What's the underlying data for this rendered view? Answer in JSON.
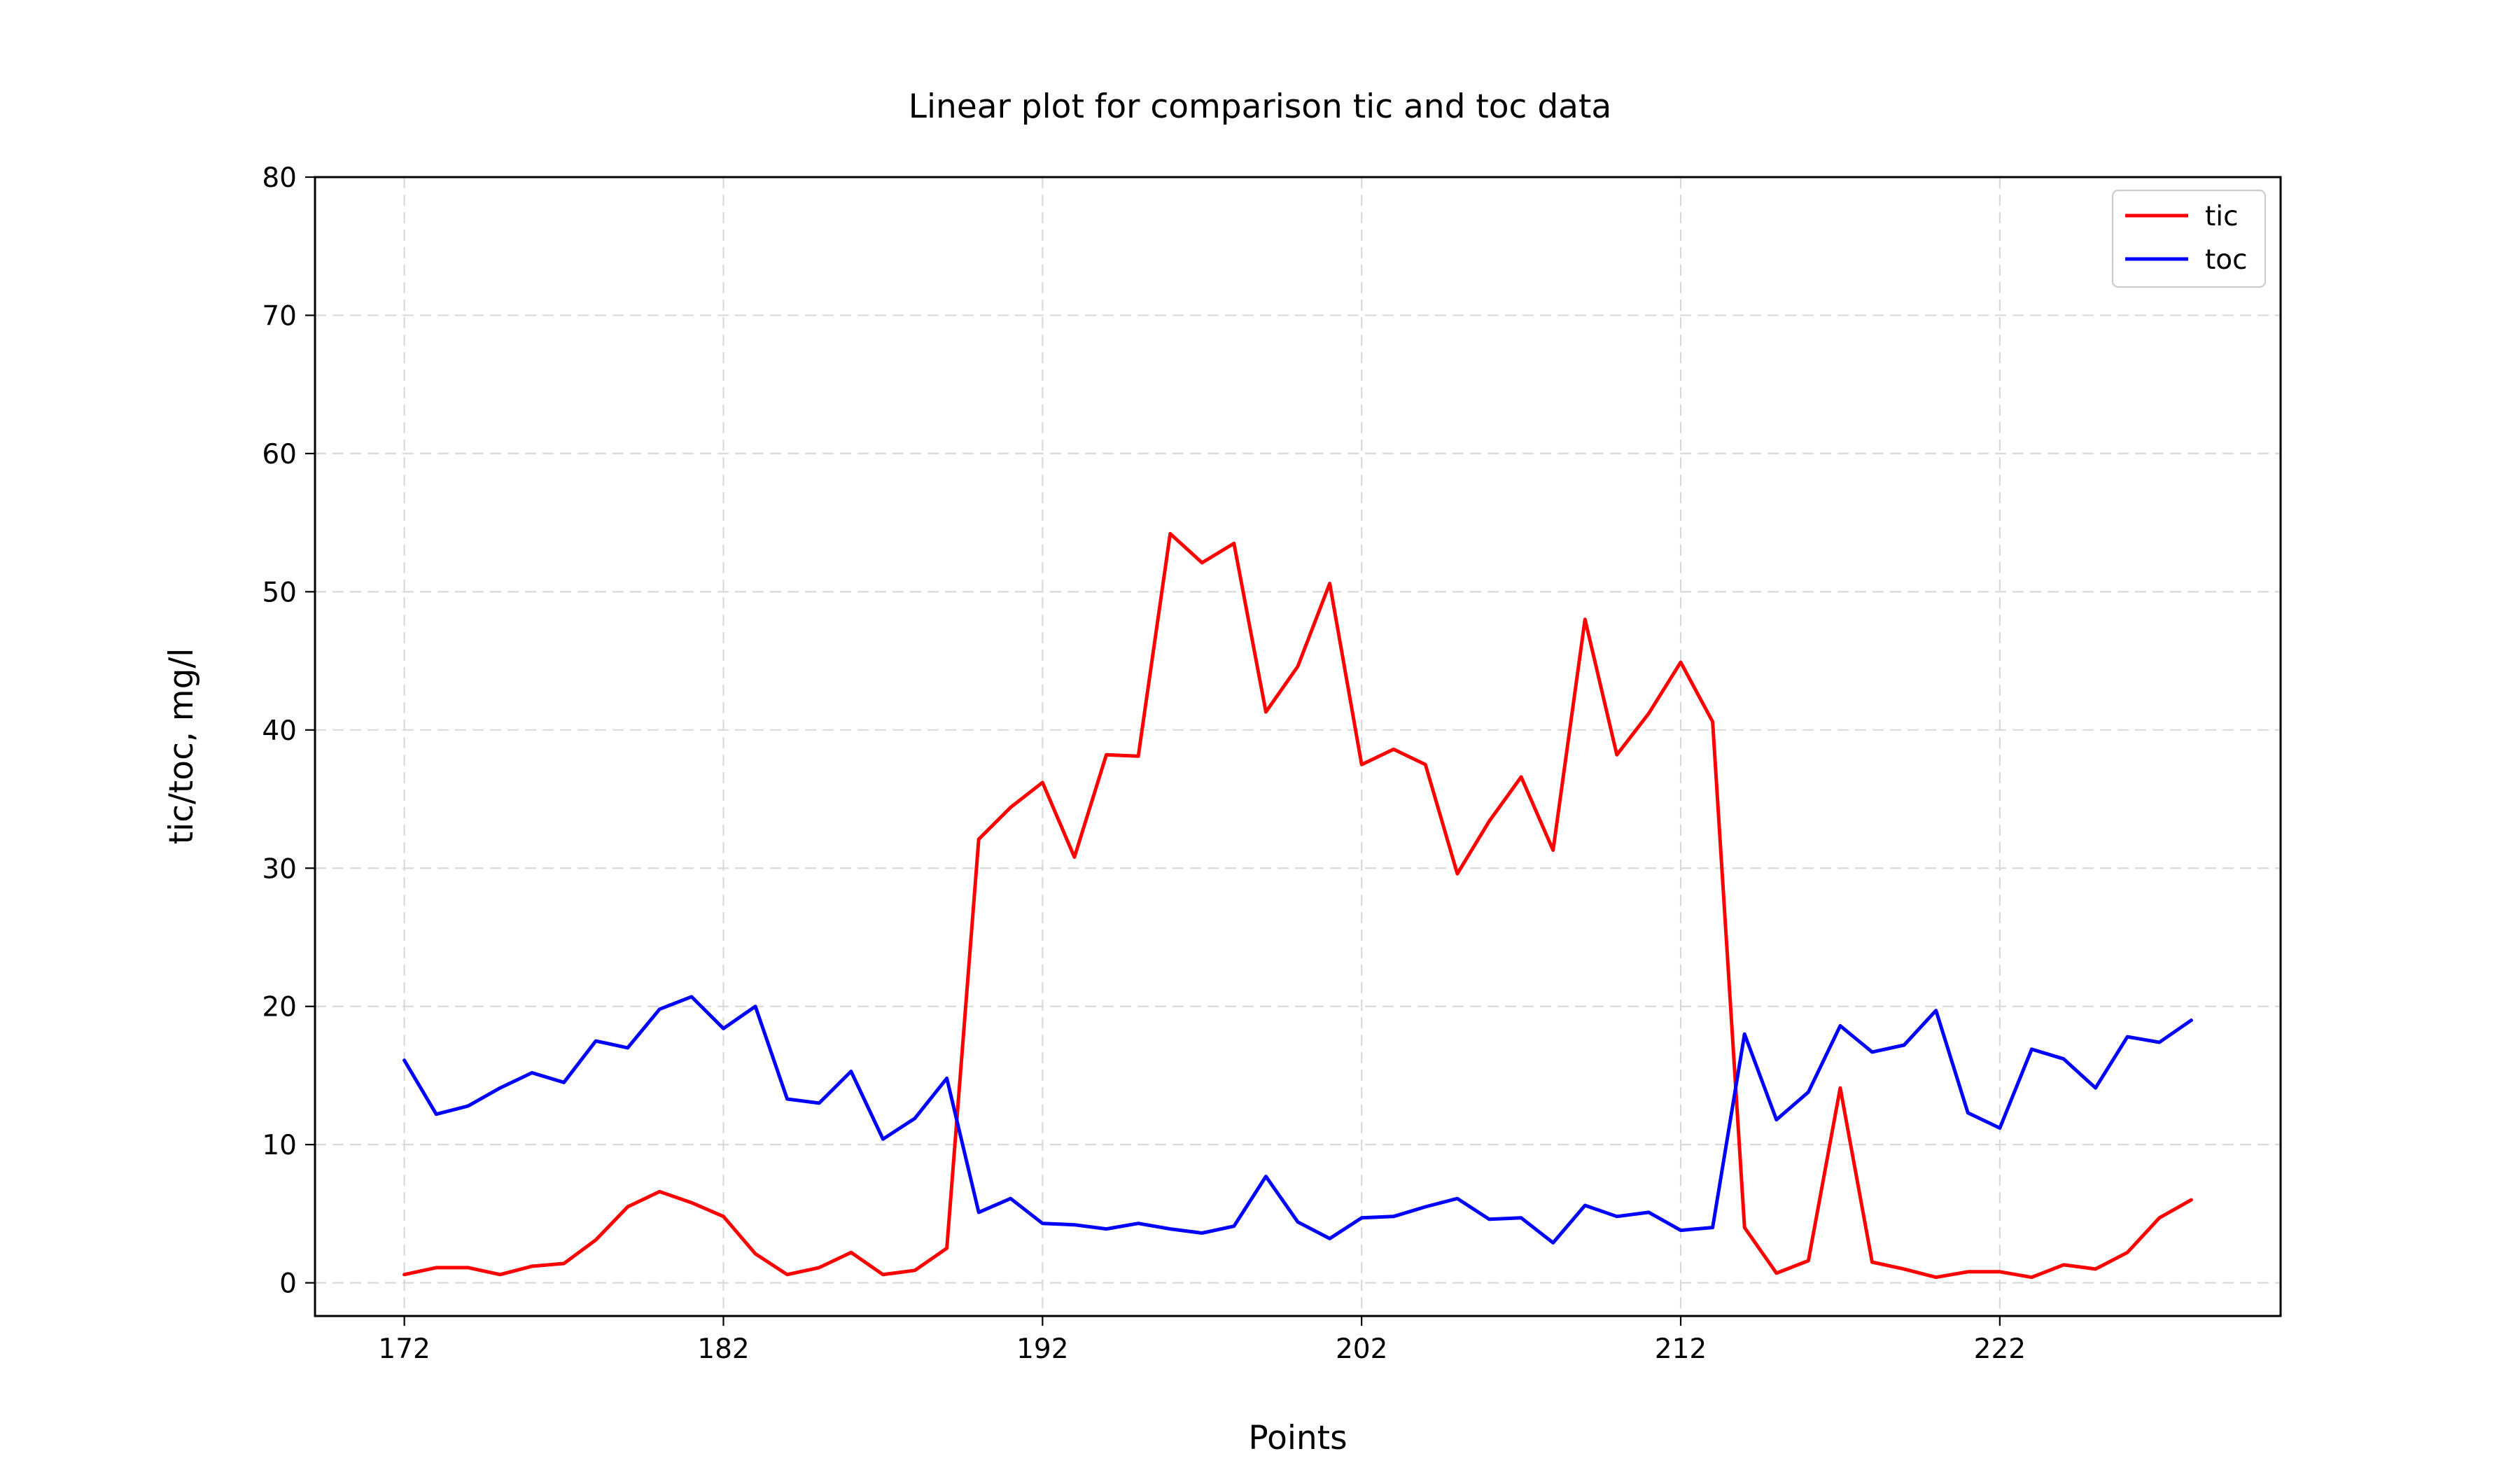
{
  "chart_data": {
    "type": "line",
    "title": "Linear plot for comparison tic and toc data",
    "xlabel": "Points",
    "ylabel": "tic/toc, mg/l",
    "xlim": [
      169.2,
      230.8
    ],
    "ylim": [
      -2.4,
      80
    ],
    "xticks": [
      172,
      182,
      192,
      202,
      212,
      222
    ],
    "yticks": [
      0,
      10,
      20,
      30,
      40,
      50,
      60,
      70,
      80
    ],
    "grid": true,
    "legend_position": "top-right",
    "x": [
      172,
      173,
      174,
      175,
      176,
      177,
      178,
      179,
      180,
      181,
      182,
      183,
      184,
      185,
      186,
      187,
      188,
      189,
      190,
      191,
      192,
      193,
      194,
      195,
      196,
      197,
      198,
      199,
      200,
      201,
      202,
      203,
      204,
      205,
      206,
      207,
      208,
      209,
      210,
      211,
      212,
      213,
      214,
      215,
      216,
      217,
      218,
      219,
      220,
      221,
      222,
      223,
      224,
      225,
      226,
      227,
      228
    ],
    "series": [
      {
        "name": "tic",
        "color": "#ff0000",
        "values": [
          0.6,
          1.1,
          1.1,
          0.6,
          1.2,
          1.4,
          3.1,
          5.5,
          6.6,
          5.8,
          4.8,
          2.1,
          0.6,
          1.1,
          2.2,
          0.6,
          0.9,
          2.5,
          32.1,
          34.4,
          36.2,
          30.8,
          38.2,
          38.1,
          54.2,
          52.1,
          53.5,
          41.3,
          44.6,
          50.6,
          37.5,
          38.6,
          37.5,
          29.6,
          33.4,
          36.6,
          31.3,
          48.0,
          38.2,
          41.2,
          44.9,
          40.6,
          4.0,
          0.7,
          1.6,
          14.1,
          1.5,
          1.0,
          0.4,
          0.8,
          0.8,
          0.4,
          1.3,
          1.0,
          2.2,
          4.7,
          6.0
        ]
      },
      {
        "name": "toc",
        "color": "#0000ff",
        "values": [
          16.1,
          12.2,
          12.8,
          14.1,
          15.2,
          14.5,
          17.5,
          17.0,
          19.8,
          20.7,
          18.4,
          20.0,
          13.3,
          13.0,
          15.3,
          10.4,
          11.9,
          14.8,
          5.1,
          6.1,
          4.3,
          4.2,
          3.9,
          4.3,
          3.9,
          3.6,
          4.1,
          7.7,
          4.4,
          3.2,
          4.7,
          4.8,
          5.5,
          6.1,
          4.6,
          4.7,
          2.9,
          5.6,
          4.8,
          5.1,
          3.8,
          4.0,
          18.0,
          11.8,
          13.8,
          18.6,
          16.7,
          17.2,
          19.7,
          12.3,
          11.2,
          16.9,
          16.2,
          14.1,
          17.8,
          17.4,
          19.0
        ]
      }
    ]
  }
}
